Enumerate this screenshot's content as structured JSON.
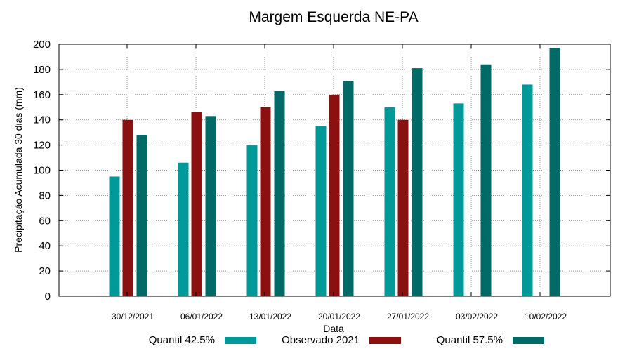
{
  "chart_data": {
    "type": "bar",
    "title": "Margem Esquerda NE-PA",
    "xlabel": "Data",
    "ylabel": "Precipitação Acumulada 30 dias (mm)",
    "ylim": [
      0,
      200
    ],
    "yticks": [
      0,
      20,
      40,
      60,
      80,
      100,
      120,
      140,
      160,
      180,
      200
    ],
    "grid": true,
    "legend_position": "bottom",
    "categories": [
      "30/12/2021",
      "06/01/2022",
      "13/01/2022",
      "20/01/2022",
      "27/01/2022",
      "03/02/2022",
      "10/02/2022"
    ],
    "series": [
      {
        "name": "Quantil 42.5%",
        "color": "#009999",
        "values": [
          95,
          106,
          120,
          135,
          150,
          153,
          168
        ]
      },
      {
        "name": "Observado 2021",
        "color": "#8b1010",
        "values": [
          140,
          146,
          150,
          160,
          140,
          null,
          null
        ]
      },
      {
        "name": "Quantil 57.5%",
        "color": "#006a66",
        "values": [
          128,
          143,
          163,
          171,
          181,
          184,
          197
        ]
      }
    ]
  }
}
